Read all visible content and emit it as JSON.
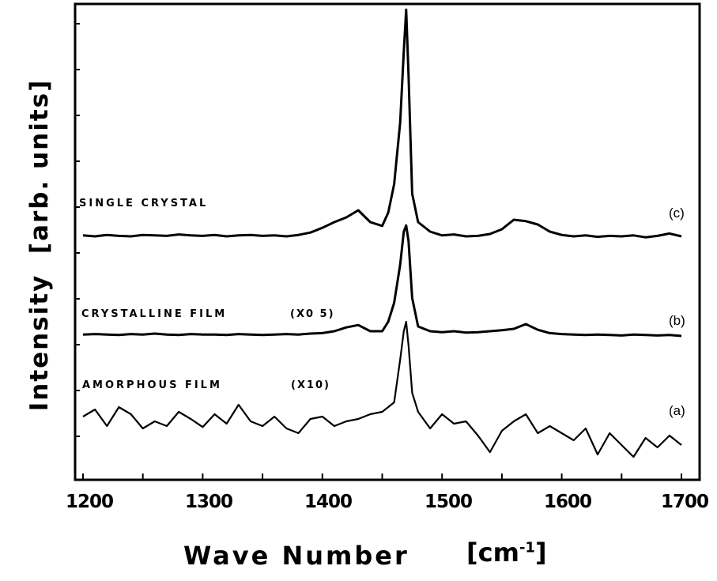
{
  "chart_data": {
    "type": "line",
    "xlabel": "Wave Number",
    "xunit": "cm",
    "xunit_exp": "-1",
    "ylabel": "Intensity",
    "yunit": "arb. units",
    "xlim": [
      1200,
      1700
    ],
    "ylim": [
      0,
      100
    ],
    "xticks": [
      "1200",
      "1300",
      "1400",
      "1500",
      "1600",
      "1700"
    ],
    "grid": false,
    "x": [
      1200,
      1210,
      1220,
      1230,
      1240,
      1250,
      1260,
      1270,
      1280,
      1290,
      1300,
      1310,
      1320,
      1330,
      1340,
      1350,
      1360,
      1370,
      1380,
      1390,
      1400,
      1410,
      1420,
      1430,
      1440,
      1450,
      1455,
      1460,
      1465,
      1468,
      1470,
      1472,
      1475,
      1480,
      1490,
      1500,
      1510,
      1520,
      1530,
      1540,
      1550,
      1560,
      1570,
      1580,
      1590,
      1600,
      1610,
      1620,
      1630,
      1640,
      1650,
      1660,
      1670,
      1680,
      1690,
      1700
    ],
    "series": [
      {
        "name": "SINGLE CRYSTAL",
        "tag": "(c)",
        "values": [
          51.2,
          51.0,
          51.3,
          51.1,
          51.0,
          51.3,
          51.2,
          51.1,
          51.4,
          51.2,
          51.1,
          51.3,
          51.0,
          51.2,
          51.3,
          51.1,
          51.2,
          51.0,
          51.3,
          51.8,
          52.8,
          54.0,
          55.0,
          56.5,
          54.0,
          53.2,
          56.0,
          62.0,
          75.0,
          90.0,
          98.8,
          85.0,
          60.0,
          54.0,
          52.0,
          51.2,
          51.4,
          51.0,
          51.1,
          51.5,
          52.5,
          54.5,
          54.2,
          53.5,
          52.0,
          51.3,
          51.0,
          51.2,
          50.9,
          51.1,
          51.0,
          51.2,
          50.8,
          51.1,
          51.6,
          51.0
        ]
      },
      {
        "name": "CRYSTALLINE FILM",
        "scale": "(X0 5)",
        "tag": "(b)",
        "values": [
          30.3,
          30.4,
          30.3,
          30.2,
          30.4,
          30.3,
          30.5,
          30.3,
          30.2,
          30.4,
          30.3,
          30.3,
          30.2,
          30.4,
          30.3,
          30.2,
          30.3,
          30.4,
          30.3,
          30.5,
          30.6,
          31.0,
          31.8,
          32.3,
          31.0,
          31.0,
          33.0,
          37.0,
          45.0,
          52.0,
          53.3,
          50.0,
          38.0,
          32.0,
          31.0,
          30.8,
          31.0,
          30.7,
          30.8,
          31.0,
          31.2,
          31.5,
          32.5,
          31.3,
          30.6,
          30.4,
          30.3,
          30.2,
          30.3,
          30.2,
          30.1,
          30.3,
          30.2,
          30.1,
          30.2,
          30.0
        ]
      },
      {
        "name": "AMORPHOUS FILM",
        "scale": "(X10)",
        "tag": "(a)",
        "values": [
          13.0,
          14.5,
          11.0,
          15.0,
          13.5,
          10.5,
          12.0,
          11.0,
          14.0,
          12.5,
          10.8,
          13.5,
          11.5,
          15.5,
          12.0,
          11.0,
          13.0,
          10.5,
          9.5,
          12.5,
          13.0,
          11.0,
          12.0,
          12.5,
          13.5,
          14.0,
          15.0,
          16.0,
          25.0,
          31.0,
          33.0,
          28.0,
          18.0,
          14.0,
          10.5,
          13.5,
          11.5,
          12.0,
          9.0,
          5.5,
          10.0,
          12.0,
          13.5,
          9.5,
          11.0,
          9.5,
          8.0,
          10.5,
          5.0,
          9.5,
          7.0,
          4.5,
          8.5,
          6.5,
          9.0,
          7.0
        ]
      }
    ]
  }
}
